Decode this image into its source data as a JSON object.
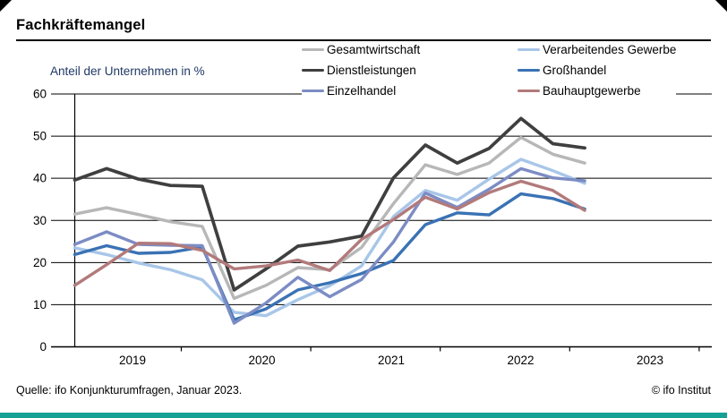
{
  "window": {
    "title": "Fachkräftemangel"
  },
  "chart": {
    "subtitle": "Anteil der Unternehmen in %"
  },
  "footer": {
    "source": "Quelle: ifo Konjunkturumfragen, Januar 2023.",
    "copyright": "© ifo Institut"
  },
  "colors": {
    "accent_bar": "#15a294",
    "corner_triangles": "#000000",
    "grid": "#000000",
    "subtitle": "#1f3864",
    "text": "#000000"
  },
  "chart_data": {
    "type": "line",
    "title": "Fachkräftemangel",
    "ylabel": "Anteil der Unternehmen in %",
    "ylim": [
      0,
      60
    ],
    "yticks": [
      0,
      10,
      20,
      30,
      40,
      50,
      60
    ],
    "grid": "horizontal",
    "legend_position": "top-right-inside",
    "year_labels": [
      "2019",
      "2020",
      "2021",
      "2022",
      "2023"
    ],
    "x": [
      "2019-01",
      "2019-04",
      "2019-07",
      "2019-10",
      "2020-01",
      "2020-04",
      "2020-07",
      "2020-10",
      "2021-01",
      "2021-04",
      "2021-07",
      "2021-10",
      "2022-01",
      "2022-04",
      "2022-07",
      "2022-10",
      "2023-01"
    ],
    "series": [
      {
        "name": "Gesamtwirtschaft",
        "color": "#b7b7b7",
        "values": [
          31.5,
          33.0,
          31.4,
          29.7,
          28.6,
          11.5,
          14.6,
          18.8,
          18.3,
          23.6,
          34.0,
          43.2,
          40.9,
          43.6,
          49.7,
          45.7,
          43.6
        ]
      },
      {
        "name": "Verarbeitendes Gewerbe",
        "color": "#a8c6e8",
        "values": [
          23.5,
          21.9,
          19.9,
          18.3,
          15.9,
          8.2,
          7.4,
          11.2,
          14.5,
          19.2,
          30.9,
          37.1,
          34.8,
          39.8,
          44.5,
          41.8,
          38.8
        ]
      },
      {
        "name": "Dienstleistungen",
        "color": "#3f3f3f",
        "values": [
          39.6,
          42.3,
          39.8,
          38.3,
          38.1,
          13.5,
          18.5,
          23.9,
          24.9,
          26.3,
          40.1,
          47.9,
          43.6,
          47.1,
          54.2,
          48.2,
          47.2
        ]
      },
      {
        "name": "Großhandel",
        "color": "#3a72b4",
        "values": [
          21.9,
          24.0,
          22.2,
          22.4,
          23.7,
          6.4,
          9.0,
          13.5,
          15.2,
          17.4,
          20.5,
          29.0,
          31.8,
          31.3,
          36.3,
          35.2,
          32.7
        ]
      },
      {
        "name": "Einzelhandel",
        "color": "#7c8cc4",
        "values": [
          24.3,
          27.3,
          24.3,
          24.1,
          24.0,
          5.6,
          10.4,
          16.5,
          11.9,
          16.0,
          24.9,
          36.5,
          33.1,
          37.4,
          42.3,
          40.1,
          39.4
        ]
      },
      {
        "name": "Bauhauptgewerbe",
        "color": "#b27a7b",
        "values": [
          14.6,
          19.5,
          24.6,
          24.5,
          22.9,
          18.5,
          19.2,
          20.6,
          18.1,
          25.5,
          30.2,
          35.5,
          32.7,
          36.6,
          39.3,
          37.1,
          32.4
        ]
      }
    ]
  }
}
